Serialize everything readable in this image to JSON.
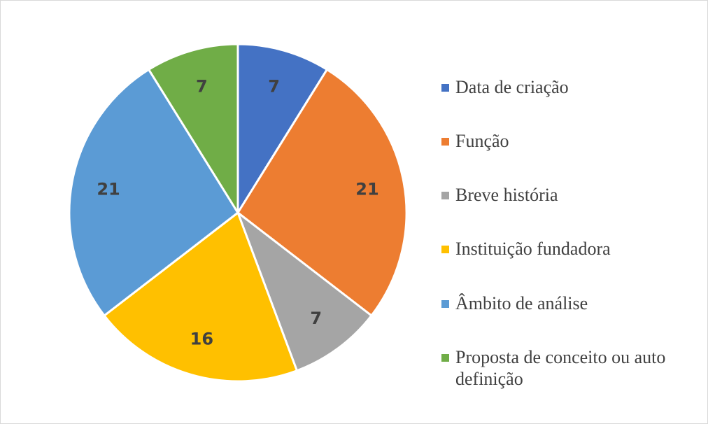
{
  "chart_data": {
    "type": "pie",
    "title": "",
    "categories": [
      "Data de criação",
      "Função",
      "Breve história",
      "Instituição fundadora",
      "Âmbito de análise",
      "Proposta de conceito ou auto definição"
    ],
    "values": [
      7,
      21,
      7,
      16,
      21,
      7
    ],
    "colors": [
      "#4472C4",
      "#ED7D31",
      "#A5A5A5",
      "#FFC000",
      "#5B9BD5",
      "#70AD47"
    ],
    "data_labels": [
      "7",
      "21",
      "7",
      "16",
      "21",
      "7"
    ],
    "legend_position": "right",
    "start_angle_deg": 0,
    "direction": "clockwise"
  }
}
